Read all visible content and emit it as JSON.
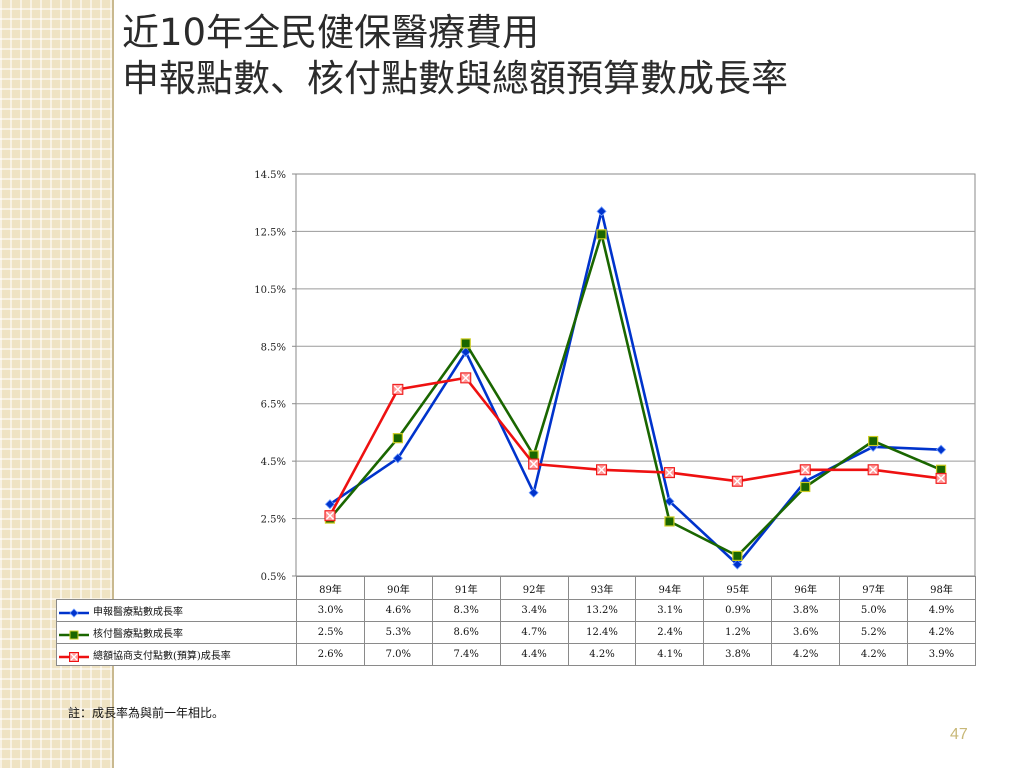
{
  "slide": {
    "title_line1": "近10年全民健保醫療費用",
    "title_line2": "申報點數、核付點數與總額預算數成長率",
    "footnote": "註：成長率為與前一年相比。",
    "page_number": "47"
  },
  "chart_data": {
    "type": "line",
    "categories": [
      "89年",
      "90年",
      "91年",
      "92年",
      "93年",
      "94年",
      "95年",
      "96年",
      "97年",
      "98年"
    ],
    "ylim": [
      0.5,
      14.5
    ],
    "yticks": [
      "0.5%",
      "2.5%",
      "4.5%",
      "6.5%",
      "8.5%",
      "10.5%",
      "12.5%",
      "14.5%"
    ],
    "grid": true,
    "legend_position": "data-table",
    "series": [
      {
        "name": "申報醫療點數成長率",
        "color": "#0033cc",
        "marker": "diamond",
        "values": [
          3.0,
          4.6,
          8.3,
          3.4,
          13.2,
          3.1,
          0.9,
          3.8,
          5.0,
          4.9
        ],
        "labels": [
          "3.0%",
          "4.6%",
          "8.3%",
          "3.4%",
          "13.2%",
          "3.1%",
          "0.9%",
          "3.8%",
          "5.0%",
          "4.9%"
        ]
      },
      {
        "name": "核付醫療點數成長率",
        "color": "#1a6600",
        "marker": "square",
        "values": [
          2.5,
          5.3,
          8.6,
          4.7,
          12.4,
          2.4,
          1.2,
          3.6,
          5.2,
          4.2
        ],
        "labels": [
          "2.5%",
          "5.3%",
          "8.6%",
          "4.7%",
          "12.4%",
          "2.4%",
          "1.2%",
          "3.6%",
          "5.2%",
          "4.2%"
        ]
      },
      {
        "name": "總額協商支付點數(預算)成長率",
        "color": "#ee1111",
        "marker": "x-square",
        "values": [
          2.6,
          7.0,
          7.4,
          4.4,
          4.2,
          4.1,
          3.8,
          4.2,
          4.2,
          3.9
        ],
        "labels": [
          "2.6%",
          "7.0%",
          "7.4%",
          "4.4%",
          "4.2%",
          "4.1%",
          "3.8%",
          "4.2%",
          "4.2%",
          "3.9%"
        ]
      }
    ]
  }
}
